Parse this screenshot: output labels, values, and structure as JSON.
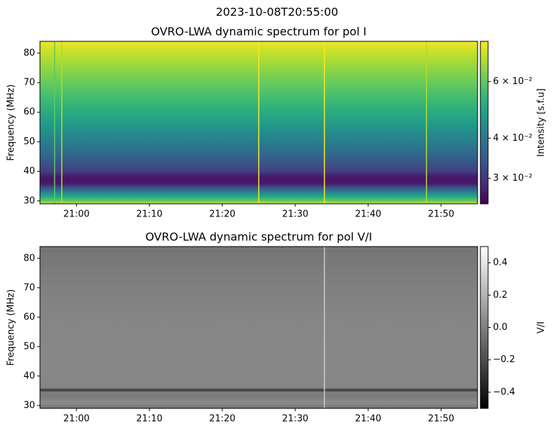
{
  "suptitle": "2023-10-08T20:55:00",
  "chart_data": [
    {
      "type": "heatmap",
      "title": "OVRO-LWA dynamic spectrum for pol I",
      "ylabel": "Frequency (MHz)",
      "colorbar_label": "Intensity [s.f.u]",
      "colormap": "viridis",
      "color_scale": "log",
      "xlim": [
        "20:55",
        "21:55"
      ],
      "xticks": [
        "21:00",
        "21:10",
        "21:20",
        "21:30",
        "21:40",
        "21:50"
      ],
      "ylim": [
        29,
        84
      ],
      "yticks": [
        30,
        40,
        50,
        60,
        70,
        80
      ],
      "clim": [
        0.025,
        0.08
      ],
      "cticks": [
        {
          "value": 0.03,
          "label": "3 × 10⁻²"
        },
        {
          "value": 0.04,
          "label": "4 × 10⁻²"
        },
        {
          "value": 0.06,
          "label": "6 × 10⁻²"
        }
      ],
      "y": [
        29,
        30,
        31.5,
        33,
        34.5,
        36,
        38,
        40,
        45,
        50,
        55,
        60,
        65,
        70,
        75,
        80,
        84
      ],
      "values": [
        0.075,
        0.06,
        0.05,
        0.042,
        0.033,
        0.027,
        0.027,
        0.031,
        0.036,
        0.041,
        0.046,
        0.051,
        0.056,
        0.061,
        0.066,
        0.072,
        0.078
      ],
      "bursts": {
        "x": [
          "20:57",
          "20:58",
          "21:25",
          "21:34",
          "21:48"
        ],
        "values": [
          0.06,
          0.07,
          0.08,
          0.08,
          0.07
        ]
      }
    },
    {
      "type": "heatmap",
      "title": "OVRO-LWA dynamic spectrum for pol V/I",
      "ylabel": "Frequency (MHz)",
      "colorbar_label": "V/I",
      "colormap": "gray",
      "color_scale": "linear",
      "xlim": [
        "20:55",
        "21:55"
      ],
      "xticks": [
        "21:00",
        "21:10",
        "21:20",
        "21:30",
        "21:40",
        "21:50"
      ],
      "ylim": [
        29,
        84
      ],
      "yticks": [
        30,
        40,
        50,
        60,
        70,
        80
      ],
      "clim": [
        -0.5,
        0.5
      ],
      "cticks": [
        {
          "value": -0.4,
          "label": "−0.4"
        },
        {
          "value": -0.2,
          "label": "−0.2"
        },
        {
          "value": 0,
          "label": "0.0"
        },
        0.2,
        0.4
      ],
      "y": [
        29,
        31,
        33,
        34.5,
        35.2,
        36,
        40,
        50,
        60,
        70,
        80,
        84
      ],
      "values": [
        -0.05,
        0.05,
        -0.02,
        0.0,
        -0.3,
        0.02,
        0.03,
        0.03,
        0.02,
        0.0,
        -0.03,
        -0.04
      ],
      "bursts": {
        "x": [
          "21:34"
        ],
        "values": [
          0.3
        ]
      }
    }
  ]
}
